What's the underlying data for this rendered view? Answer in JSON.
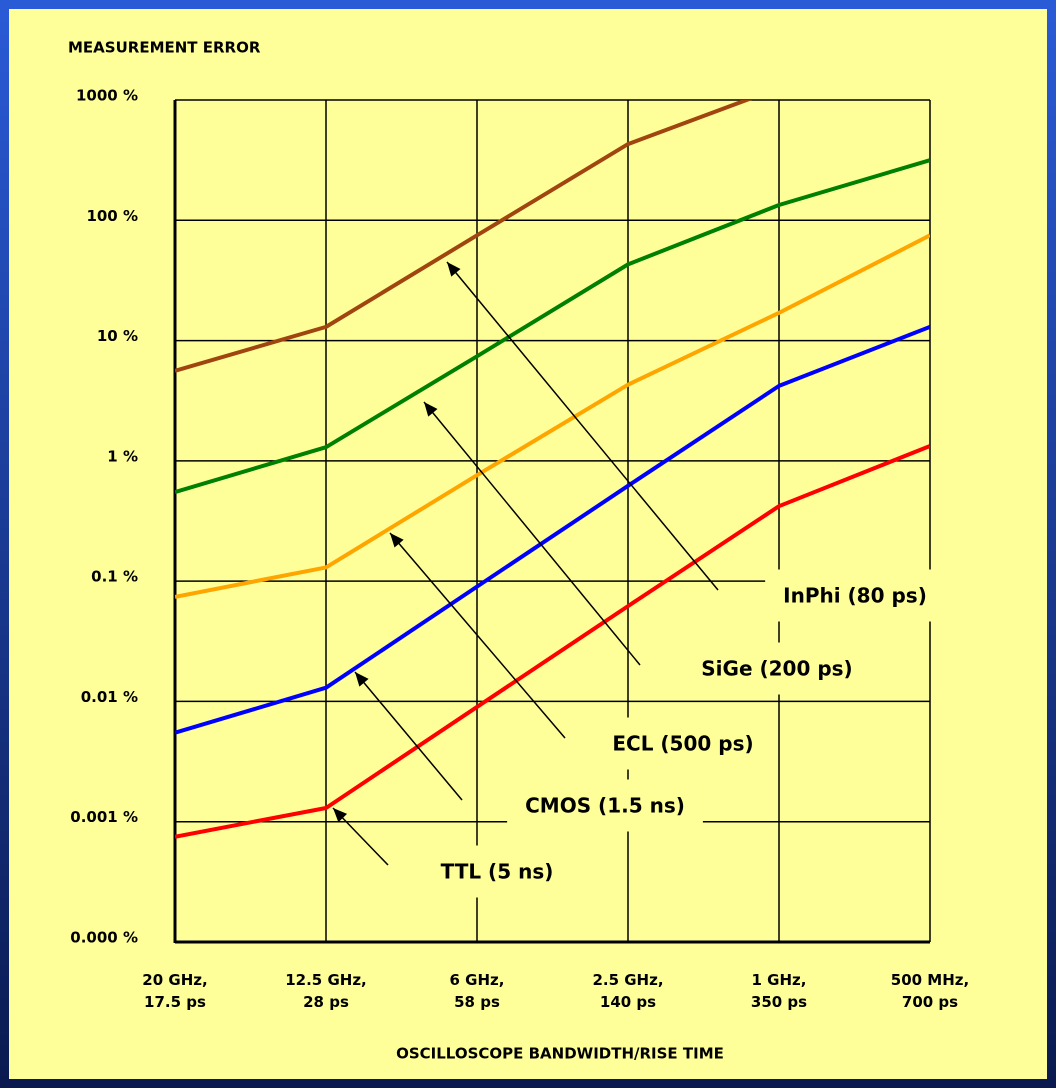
{
  "chart_data": {
    "type": "line",
    "y_label": "MEASUREMENT ERROR",
    "x_label": "OSCILLOSCOPE BANDWIDTH/RISE TIME",
    "categories": [
      "20 GHz,\n17.5 ps",
      "12.5 GHz,\n28 ps",
      "6 GHz,\n58 ps",
      "2.5 GHz,\n140 ps",
      "1 GHz,\n350 ps",
      "500 MHz,\n700 ps"
    ],
    "log_y": true,
    "grid": true,
    "ylim": [
      0.0001,
      1000
    ],
    "yticks": [
      {
        "value": 0.0001,
        "label": "0.000 %"
      },
      {
        "value": 0.001,
        "label": "0.001 %"
      },
      {
        "value": 0.01,
        "label": "0.01 %"
      },
      {
        "value": 0.1,
        "label": "0.1 %"
      },
      {
        "value": 1,
        "label": "1 %"
      },
      {
        "value": 10,
        "label": "10 %"
      },
      {
        "value": 100,
        "label": "100 %"
      },
      {
        "value": 1000,
        "label": "1000 %"
      }
    ],
    "series": [
      {
        "name": "TTL (5 ns)",
        "color": "#ff0000",
        "values": [
          0.00075,
          0.0013,
          0.009,
          0.062,
          0.42,
          1.33
        ]
      },
      {
        "name": "CMOS (1.5 ns)",
        "color": "#0000ff",
        "values": [
          0.0055,
          0.013,
          0.09,
          0.62,
          4.2,
          13
        ]
      },
      {
        "name": "ECL (500 ps)",
        "color": "#ffa500",
        "values": [
          0.074,
          0.13,
          0.76,
          4.3,
          17,
          75
        ]
      },
      {
        "name": "SiGe (200 ps)",
        "color": "#008000",
        "values": [
          0.55,
          1.3,
          7.4,
          43,
          134,
          316
        ]
      },
      {
        "name": "InPhi (80 ps)",
        "color": "#a0450f",
        "values": [
          5.6,
          13,
          75,
          430,
          1260,
          null
        ]
      }
    ]
  }
}
